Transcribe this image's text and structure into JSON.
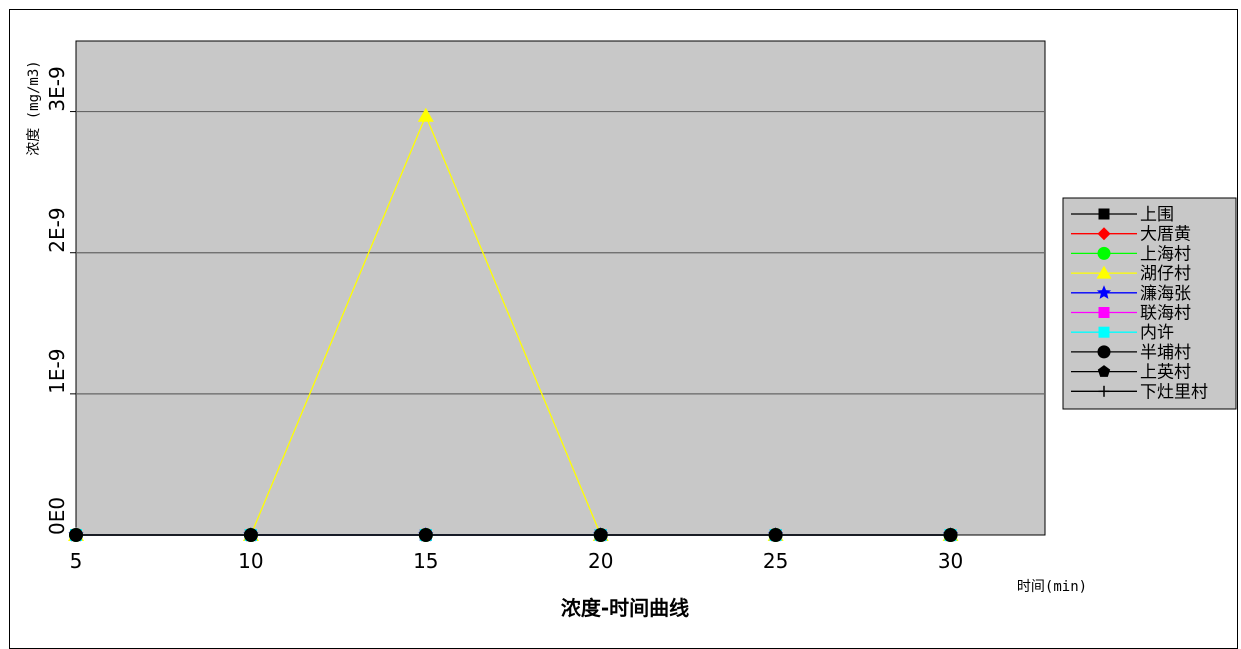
{
  "chart_data": {
    "type": "line",
    "title": "浓度-时间曲线",
    "xlabel": "时间(min)",
    "ylabel": "浓度 (mg/m3)",
    "x": [
      5,
      10,
      15,
      20,
      25,
      30
    ],
    "xlim": [
      5,
      32.7
    ],
    "ylim": [
      0,
      3.5e-09
    ],
    "x_ticks": [
      5,
      10,
      15,
      20,
      25,
      30
    ],
    "y_ticks": [
      0,
      1e-09,
      2e-09,
      3e-09
    ],
    "y_tick_labels": [
      "0E0",
      "1E-9",
      "2E-9",
      "3E-9"
    ],
    "grid": "horizontal",
    "plot_background": "#c8c8c8",
    "legend_position": "right",
    "series": [
      {
        "name": "上围",
        "color": "#000000",
        "marker": "square",
        "values": [
          0,
          0,
          0,
          0,
          0,
          0
        ]
      },
      {
        "name": "大厝黄",
        "color": "#ff0000",
        "marker": "diamond",
        "values": [
          0,
          0,
          0,
          0,
          0,
          0
        ]
      },
      {
        "name": "上海村",
        "color": "#00ff00",
        "marker": "circle",
        "values": [
          0,
          0,
          0,
          0,
          0,
          0
        ]
      },
      {
        "name": "湖仔村",
        "color": "#ffff00",
        "marker": "triangle",
        "values": [
          0,
          0,
          2.97e-09,
          0,
          0,
          0
        ]
      },
      {
        "name": "濂海张",
        "color": "#0000ff",
        "marker": "star",
        "values": [
          0,
          0,
          0,
          0,
          0,
          0
        ]
      },
      {
        "name": "联海村",
        "color": "#ff00ff",
        "marker": "square",
        "values": [
          0,
          0,
          0,
          0,
          0,
          0
        ]
      },
      {
        "name": "内许",
        "color": "#00ffff",
        "marker": "square",
        "values": [
          0,
          0,
          0,
          0,
          0,
          0
        ]
      },
      {
        "name": "半埔村",
        "color": "#000000",
        "marker": "circle",
        "values": [
          0,
          0,
          0,
          0,
          0,
          0
        ]
      },
      {
        "name": "上英村",
        "color": "#000000",
        "marker": "pentagon",
        "values": [
          0,
          0,
          0,
          0,
          0,
          0
        ]
      },
      {
        "name": "下灶里村",
        "color": "#000000",
        "marker": "plus",
        "values": [
          0,
          0,
          0,
          0,
          0,
          0
        ]
      }
    ]
  }
}
